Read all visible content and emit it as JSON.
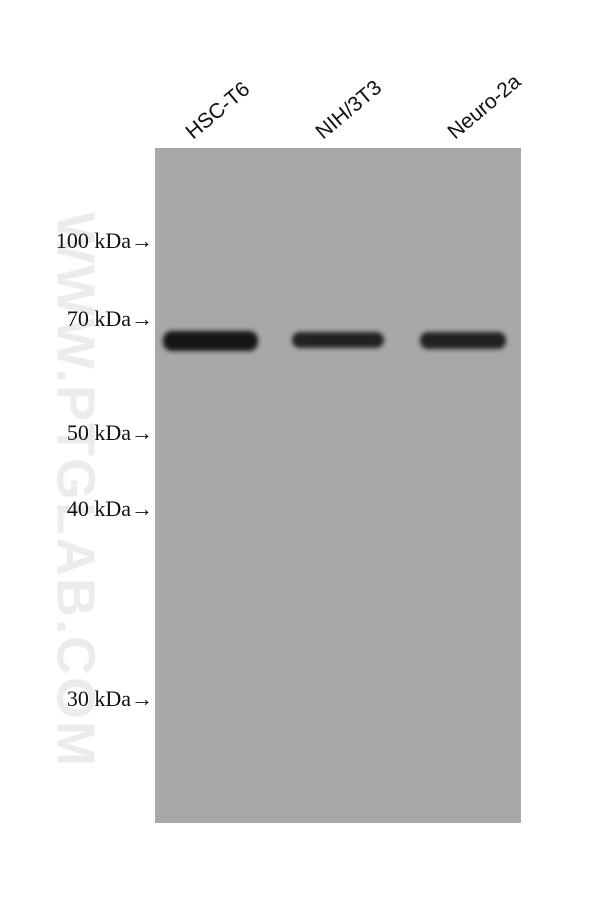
{
  "lanes": [
    "HSC-T6",
    "NIH/3T3",
    "Neuro-2a"
  ],
  "markers": [
    "100 kDa→",
    "70 kDa→",
    "50 kDa→",
    "40 kDa→",
    "30 kDa→"
  ],
  "watermark": "WWW.PTGLAB.COM"
}
